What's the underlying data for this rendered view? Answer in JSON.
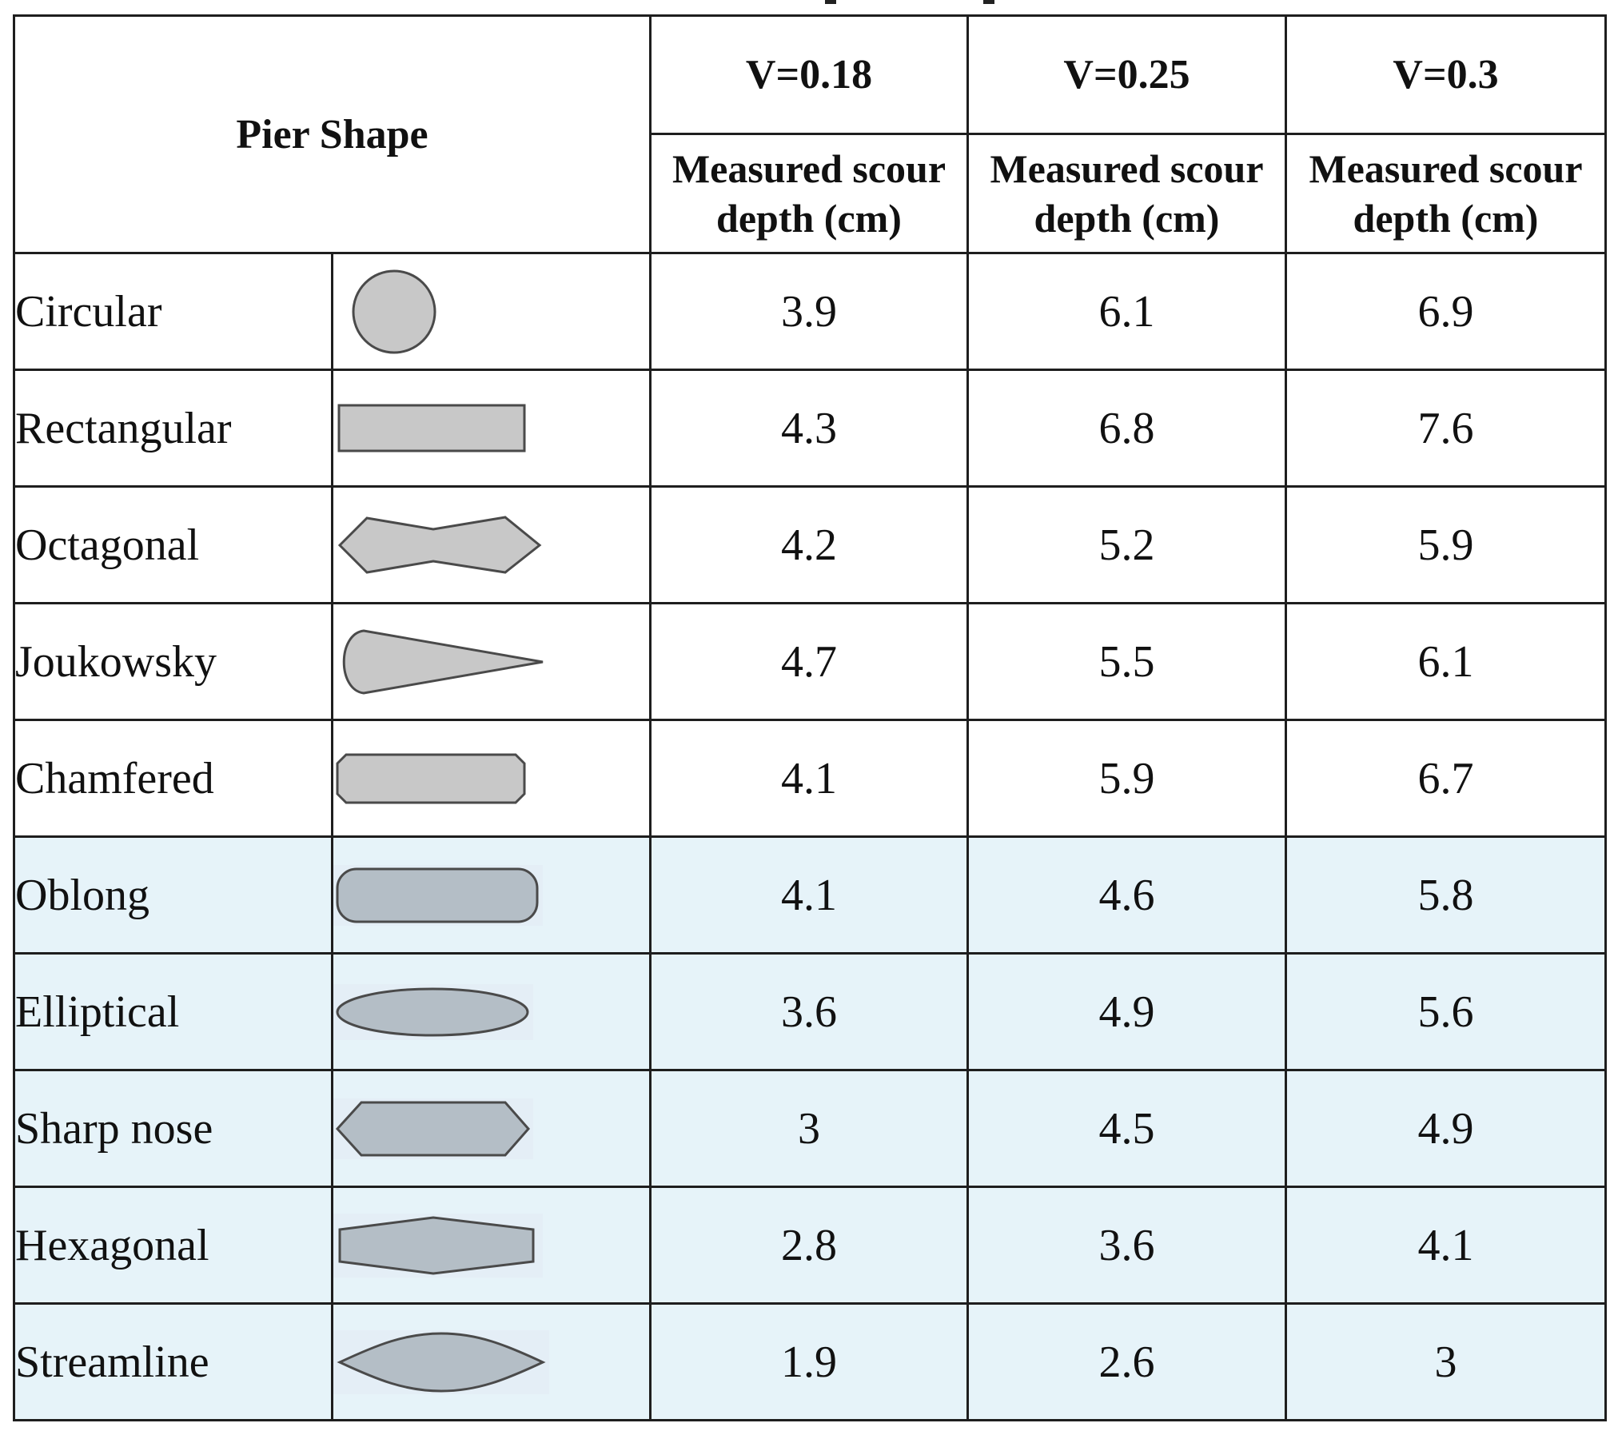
{
  "table": {
    "pier_shape_header": "Pier Shape",
    "velocity_headers": [
      "V=0.18",
      "V=0.25",
      "V=0.3"
    ],
    "measure_header": "Measured scour depth (cm)",
    "rows": [
      {
        "name": "Circular",
        "icon": "circle-pier-icon",
        "values": [
          "3.9",
          "6.1",
          "6.9"
        ]
      },
      {
        "name": "Rectangular",
        "icon": "rectangle-pier-icon",
        "values": [
          "4.3",
          "6.8",
          "7.6"
        ]
      },
      {
        "name": "Octagonal",
        "icon": "octagon-pier-icon",
        "values": [
          "4.2",
          "5.2",
          "5.9"
        ]
      },
      {
        "name": "Joukowsky",
        "icon": "joukowsky-pier-icon",
        "values": [
          "4.7",
          "5.5",
          "6.1"
        ]
      },
      {
        "name": "Chamfered",
        "icon": "chamfered-pier-icon",
        "values": [
          "4.1",
          "5.9",
          "6.7"
        ]
      },
      {
        "name": "Oblong",
        "icon": "oblong-pier-icon",
        "values": [
          "4.1",
          "4.6",
          "5.8"
        ]
      },
      {
        "name": "Elliptical",
        "icon": "ellipse-pier-icon",
        "values": [
          "3.6",
          "4.9",
          "5.6"
        ]
      },
      {
        "name": "Sharp nose",
        "icon": "sharp-nose-pier-icon",
        "values": [
          "3",
          "4.5",
          "4.9"
        ]
      },
      {
        "name": "Hexagonal",
        "icon": "hexagon-pier-icon",
        "values": [
          "2.8",
          "3.6",
          "4.1"
        ]
      },
      {
        "name": "Streamline",
        "icon": "streamline-pier-icon",
        "values": [
          "1.9",
          "2.6",
          "3"
        ]
      }
    ]
  },
  "colors": {
    "shape_fill_white_rows": "#c8c8c8",
    "shape_fill_blue_rows": "#b4bec6",
    "highlight_row_background": "#e6f3f9"
  }
}
